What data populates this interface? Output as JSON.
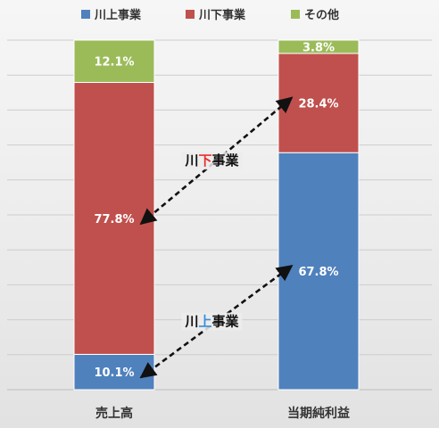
{
  "chart_data": {
    "type": "bar",
    "stacked": true,
    "percent_stacked": true,
    "categories": [
      "売上高",
      "当期純利益"
    ],
    "series": [
      {
        "name": "川上事業",
        "values": [
          10.1,
          67.8
        ],
        "labels": [
          "10.1%",
          "67.8%"
        ],
        "color": "#4f81bd"
      },
      {
        "name": "川下事業",
        "values": [
          77.8,
          28.4
        ],
        "labels": [
          "77.8%",
          "28.4%"
        ],
        "color": "#c0504d"
      },
      {
        "name": "その他",
        "values": [
          12.1,
          3.8
        ],
        "labels": [
          "12.1%",
          "3.8%"
        ],
        "color": "#9bbb59"
      }
    ],
    "ylim": [
      0,
      100
    ],
    "grid": true,
    "legend": "top",
    "annotations": [
      {
        "prefix": "川",
        "highlight": "下",
        "suffix": "事業",
        "highlight_color": "#e8322d",
        "series": "川下事業"
      },
      {
        "prefix": "川",
        "highlight": "上",
        "suffix": "事業",
        "highlight_color": "#3a8ed8",
        "series": "川上事業"
      }
    ]
  }
}
